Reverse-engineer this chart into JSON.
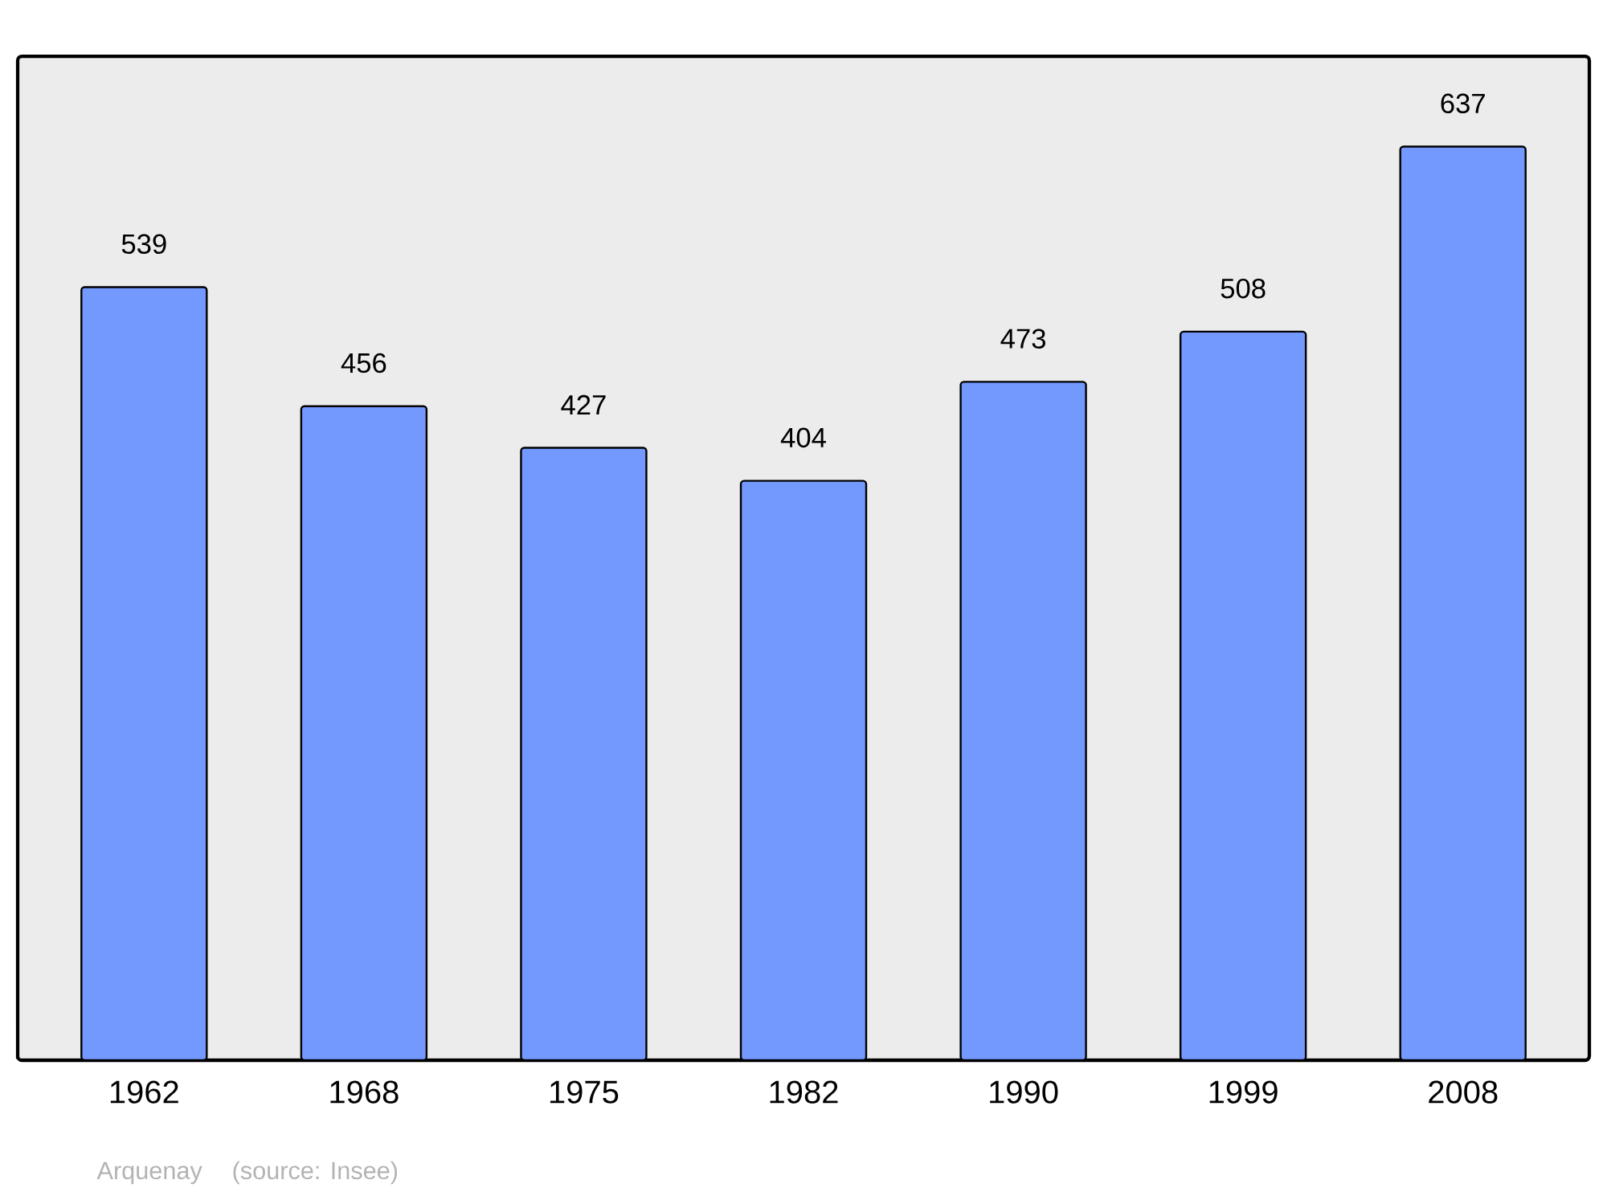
{
  "chart_data": {
    "type": "bar",
    "categories": [
      "1962",
      "1968",
      "1975",
      "1982",
      "1990",
      "1999",
      "2008"
    ],
    "values": [
      539,
      456,
      427,
      404,
      473,
      508,
      637
    ],
    "color": "#7399ff",
    "ylim": [
      0,
      700
    ],
    "data_labels": true,
    "annotations": [
      "Arquenay",
      "(source: Insee)"
    ]
  }
}
